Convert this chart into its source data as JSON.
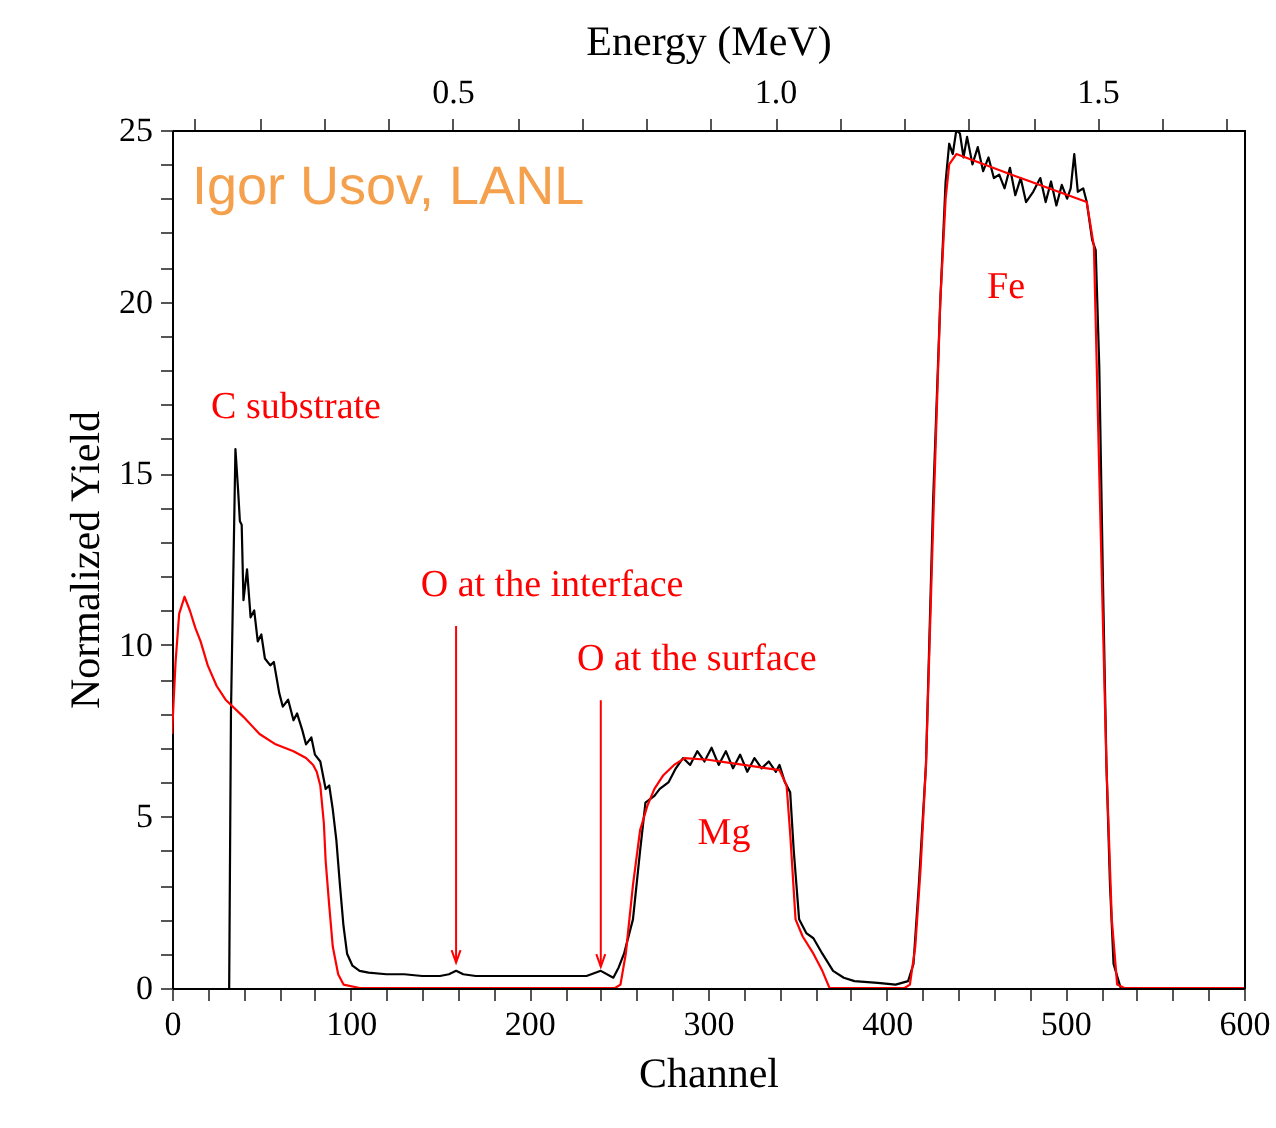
{
  "chart_data": {
    "type": "line",
    "xlabel": "Channel",
    "ylabel": "Normalized Yield",
    "x2label": "Energy (MeV)",
    "xlim": [
      0,
      600
    ],
    "ylim": [
      0,
      25
    ],
    "x2lim": [
      0.065,
      1.727
    ],
    "xticks": [
      0,
      {
        "value": 20,
        "label": null
      },
      {
        "value": 40,
        "label": null
      },
      {
        "value": 60,
        "label": null
      },
      {
        "value": 80,
        "label": null
      },
      100,
      {
        "value": 120,
        "label": null
      },
      {
        "value": 140,
        "label": null
      },
      {
        "value": 160,
        "label": null
      },
      {
        "value": 180,
        "label": null
      },
      200,
      {
        "value": 220,
        "label": null
      },
      {
        "value": 240,
        "label": null
      },
      {
        "value": 260,
        "label": null
      },
      {
        "value": 280,
        "label": null
      },
      300,
      {
        "value": 320,
        "label": null
      },
      {
        "value": 340,
        "label": null
      },
      {
        "value": 360,
        "label": null
      },
      {
        "value": 380,
        "label": null
      },
      400,
      {
        "value": 420,
        "label": null
      },
      {
        "value": 440,
        "label": null
      },
      {
        "value": 460,
        "label": null
      },
      {
        "value": 480,
        "label": null
      },
      500,
      {
        "value": 520,
        "label": null
      },
      {
        "value": 540,
        "label": null
      },
      {
        "value": 560,
        "label": null
      },
      {
        "value": 580,
        "label": null
      },
      600
    ],
    "yticks": [
      0,
      {
        "value": 1,
        "label": null
      },
      {
        "value": 2,
        "label": null
      },
      {
        "value": 3,
        "label": null
      },
      {
        "value": 4,
        "label": null
      },
      5,
      {
        "value": 6,
        "label": null
      },
      {
        "value": 7,
        "label": null
      },
      {
        "value": 8,
        "label": null
      },
      {
        "value": 9,
        "label": null
      },
      10,
      {
        "value": 11,
        "label": null
      },
      {
        "value": 12,
        "label": null
      },
      {
        "value": 13,
        "label": null
      },
      {
        "value": 14,
        "label": null
      },
      15,
      {
        "value": 16,
        "label": null
      },
      {
        "value": 17,
        "label": null
      },
      {
        "value": 18,
        "label": null
      },
      {
        "value": 19,
        "label": null
      },
      20,
      {
        "value": 21,
        "label": null
      },
      {
        "value": 22,
        "label": null
      },
      {
        "value": 23,
        "label": null
      },
      {
        "value": 24,
        "label": null
      },
      25
    ],
    "x2ticks": [
      {
        "value": 0.1,
        "label": null
      },
      {
        "value": 0.2,
        "label": null
      },
      {
        "value": 0.3,
        "label": null
      },
      {
        "value": 0.4,
        "label": null
      },
      0.5,
      {
        "value": 0.6,
        "label": null
      },
      {
        "value": 0.7,
        "label": null
      },
      {
        "value": 0.8,
        "label": null
      },
      {
        "value": 0.9,
        "label": null
      },
      {
        "value": 1.0,
        "label": "1.0"
      },
      {
        "value": 1.1,
        "label": null
      },
      {
        "value": 1.2,
        "label": null
      },
      {
        "value": 1.3,
        "label": null
      },
      {
        "value": 1.4,
        "label": null
      },
      1.5,
      {
        "value": 1.6,
        "label": null
      },
      {
        "value": 1.7,
        "label": null
      }
    ],
    "grid": false,
    "marker": "none",
    "line_style": "solid",
    "series": [
      {
        "color": "#000000",
        "x": [
          32,
          33,
          35.5,
          37,
          38,
          39,
          40,
          42,
          44,
          46,
          48,
          50,
          52,
          55,
          57,
          60,
          62,
          65,
          68,
          70,
          73,
          75,
          78,
          80,
          83,
          86,
          88,
          90,
          92,
          94,
          96,
          98,
          101,
          105,
          110,
          120,
          130,
          140,
          150,
          155,
          159,
          163,
          170,
          180,
          200,
          220,
          232,
          240,
          247,
          250,
          253,
          258,
          262,
          265,
          270,
          273,
          278,
          282,
          286,
          290,
          294,
          298,
          302,
          306,
          310,
          314,
          318,
          322,
          326,
          330,
          334,
          338,
          340,
          343,
          346,
          348,
          351,
          355,
          359,
          364,
          370,
          376,
          382,
          395,
          405,
          412,
          415,
          418,
          422,
          426,
          430,
          433,
          435,
          437,
          439,
          441,
          443,
          445,
          448,
          451,
          454,
          457,
          460,
          463,
          466,
          469,
          472,
          475,
          478,
          482,
          486,
          489,
          492,
          495,
          498,
          501,
          503,
          505,
          507,
          510,
          512,
          515,
          517,
          519,
          521,
          523,
          525,
          527,
          531,
          600
        ],
        "values": [
          0,
          8,
          15.7,
          14.5,
          13.6,
          13.5,
          11.3,
          12.2,
          10.8,
          11.0,
          10.1,
          10.3,
          9.6,
          9.4,
          9.5,
          8.6,
          8.2,
          8.4,
          7.8,
          8.0,
          7.5,
          7.1,
          7.3,
          6.8,
          6.6,
          5.8,
          5.9,
          5.2,
          4.3,
          3.0,
          1.8,
          1.0,
          0.65,
          0.5,
          0.45,
          0.4,
          0.4,
          0.35,
          0.35,
          0.4,
          0.5,
          0.4,
          0.35,
          0.35,
          0.35,
          0.35,
          0.35,
          0.5,
          0.3,
          0.6,
          1.0,
          2.0,
          4.0,
          5.4,
          5.6,
          5.8,
          6.0,
          6.4,
          6.7,
          6.5,
          6.9,
          6.6,
          7.0,
          6.5,
          6.9,
          6.4,
          6.8,
          6.3,
          6.7,
          6.4,
          6.6,
          6.3,
          6.5,
          6.0,
          5.7,
          4.0,
          2.0,
          1.6,
          1.45,
          1.0,
          0.5,
          0.3,
          0.2,
          0.15,
          0.1,
          0.2,
          0.7,
          3.0,
          6.5,
          14.2,
          20.0,
          23.5,
          24.6,
          24.3,
          25.0,
          24.9,
          24.2,
          24.8,
          24.0,
          24.5,
          23.8,
          24.2,
          23.6,
          23.7,
          23.3,
          23.9,
          23.1,
          23.6,
          22.9,
          23.2,
          23.6,
          22.9,
          23.5,
          22.8,
          23.4,
          23.0,
          23.3,
          24.3,
          23.2,
          23.3,
          22.9,
          21.8,
          21.5,
          18.1,
          12.0,
          6.5,
          3.0,
          0.7,
          0,
          0
        ]
      },
      {
        "color": "#ff0000",
        "x": [
          0,
          2,
          4,
          7,
          10,
          13,
          16,
          20,
          25,
          30,
          40,
          49,
          58,
          68,
          75,
          79,
          81,
          83,
          85,
          86,
          88,
          90,
          93,
          96,
          105,
          200,
          248,
          251,
          254,
          258,
          262,
          266,
          270,
          275,
          281,
          287,
          300,
          320,
          340,
          344,
          346,
          349,
          353,
          359,
          364,
          368,
          410,
          413,
          416,
          419,
          422,
          426,
          430,
          433,
          435,
          439,
          475,
          512,
          516,
          519,
          523,
          526,
          529,
          533,
          600
        ],
        "values": [
          7.4,
          9.5,
          10.9,
          11.4,
          11.0,
          10.5,
          10.1,
          9.4,
          8.8,
          8.4,
          7.9,
          7.4,
          7.1,
          6.9,
          6.7,
          6.5,
          6.3,
          5.9,
          4.8,
          3.7,
          2.4,
          1.2,
          0.4,
          0.1,
          0,
          0,
          0,
          0.1,
          1.0,
          3.0,
          4.6,
          5.3,
          5.8,
          6.2,
          6.5,
          6.7,
          6.65,
          6.5,
          6.35,
          5.9,
          4.5,
          2.0,
          1.5,
          1.0,
          0.5,
          0,
          0,
          0.1,
          1.2,
          3.5,
          6.5,
          13.5,
          20,
          23.0,
          24.0,
          24.3,
          23.6,
          22.9,
          21.6,
          15.0,
          6.5,
          2.0,
          0.1,
          0,
          0
        ]
      }
    ],
    "annotations": [
      "Igor Usov, LANL",
      "C substrate",
      {
        "text": "O at the interface",
        "x": 159,
        "y": 0.64
      },
      {
        "text": "O at the surface",
        "x": 240,
        "y": 0.52
      },
      "Mg",
      "Fe"
    ]
  }
}
